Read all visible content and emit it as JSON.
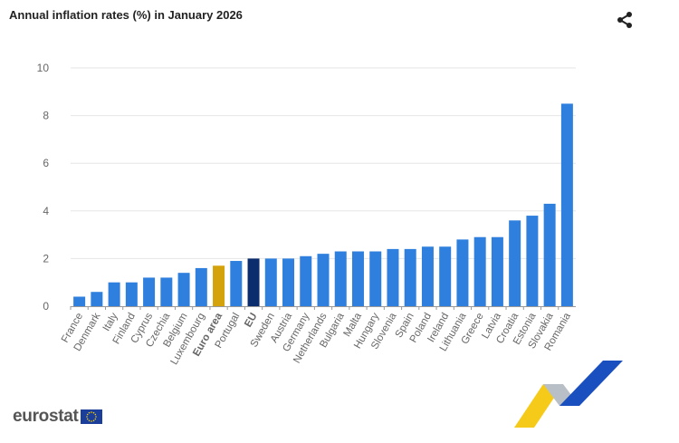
{
  "header": {
    "title": "Annual inflation rates (%) in January 2026",
    "share_icon": "share-icon"
  },
  "logo": {
    "text": "eurostat",
    "flag_icon": "eu-flag-icon"
  },
  "colors": {
    "country": "#2f80de",
    "euro_area": "#d4a20b",
    "eu": "#0b2d6e",
    "grid": "#e6e6e6",
    "axis_text": "#666666"
  },
  "chart_data": {
    "type": "bar",
    "title": "Annual inflation rates (%) in January 2026",
    "xlabel": "",
    "ylabel": "",
    "ylim": [
      0,
      10
    ],
    "yticks": [
      0,
      2,
      4,
      6,
      8,
      10
    ],
    "grid": true,
    "categories": [
      "France",
      "Denmark",
      "Italy",
      "Finland",
      "Cyprus",
      "Czechia",
      "Belgium",
      "Luxembourg",
      "Euro area",
      "Portugal",
      "EU",
      "Sweden",
      "Austria",
      "Germany",
      "Netherlands",
      "Bulgaria",
      "Malta",
      "Hungary",
      "Slovenia",
      "Spain",
      "Poland",
      "Ireland",
      "Lithuania",
      "Greece",
      "Latvia",
      "Croatia",
      "Estonia",
      "Slovakia",
      "Romania"
    ],
    "values": [
      0.4,
      0.6,
      1.0,
      1.0,
      1.2,
      1.2,
      1.4,
      1.6,
      1.7,
      1.9,
      2.0,
      2.0,
      2.0,
      2.1,
      2.2,
      2.3,
      2.3,
      2.3,
      2.4,
      2.4,
      2.5,
      2.5,
      2.8,
      2.9,
      2.9,
      3.6,
      3.8,
      4.3,
      8.5
    ],
    "highlight": {
      "Euro area": "euro_area",
      "EU": "eu"
    }
  }
}
